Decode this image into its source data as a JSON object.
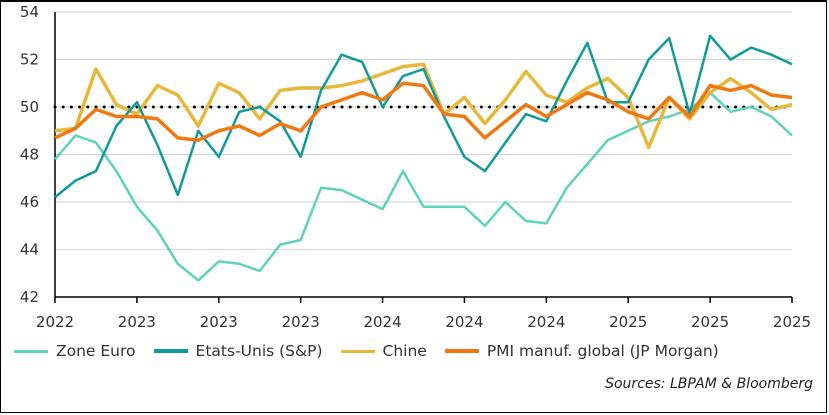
{
  "chart_data": {
    "type": "line",
    "x_tick_labels": [
      "2022",
      "2023",
      "2023",
      "2023",
      "2024",
      "2024",
      "2024",
      "2025",
      "2025",
      "2025"
    ],
    "x_tick_labels_full": [
      "2022",
      "2023",
      "2023",
      "2023",
      "2024",
      "2024",
      "2024",
      "2025",
      "2025",
      "2025"
    ],
    "y_ticks": [
      42,
      44,
      46,
      48,
      50,
      52,
      54
    ],
    "ylim": [
      42,
      54
    ],
    "grid": "horizontal",
    "reference_line": 50,
    "legend_position": "bottom",
    "series": [
      {
        "name": "Zone Euro",
        "color": "#5dd3b8",
        "values": [
          47.8,
          48.8,
          48.5,
          47.3,
          45.8,
          44.8,
          43.4,
          42.7,
          43.5,
          43.4,
          43.1,
          44.2,
          44.4,
          46.6,
          46.5,
          46.1,
          45.7,
          47.3,
          45.8,
          45.8,
          45.8,
          45.0,
          46.0,
          45.2,
          45.1,
          46.6,
          47.6,
          48.6,
          49.0,
          49.4,
          49.6,
          49.9,
          50.6,
          49.8,
          50.0,
          49.6,
          48.8
        ]
      },
      {
        "name": "Etats-Unis (S&P)",
        "color": "#109b9b",
        "values": [
          46.2,
          46.9,
          47.3,
          49.2,
          50.2,
          48.4,
          46.3,
          49.0,
          47.9,
          49.8,
          50.0,
          49.4,
          47.9,
          50.7,
          52.2,
          51.9,
          50.0,
          51.3,
          51.6,
          49.6,
          47.9,
          47.3,
          48.5,
          49.7,
          49.4,
          51.1,
          52.7,
          50.2,
          50.2,
          52.0,
          52.9,
          49.7,
          53.0,
          52.0,
          52.5,
          52.2,
          51.8
        ]
      },
      {
        "name": "Chine",
        "color": "#e6b83c",
        "values": [
          49.0,
          49.1,
          51.6,
          50.1,
          49.7,
          50.9,
          50.5,
          49.2,
          51.0,
          50.6,
          49.5,
          50.7,
          50.8,
          50.8,
          50.9,
          51.1,
          51.4,
          51.7,
          51.8,
          49.7,
          50.4,
          49.3,
          50.3,
          51.5,
          50.5,
          50.2,
          50.8,
          51.2,
          50.4,
          48.3,
          50.4,
          49.5,
          50.6,
          51.2,
          50.6,
          49.9,
          50.1
        ]
      },
      {
        "name": "PMI manuf. global (JP Morgan)",
        "color": "#f07810",
        "values": [
          48.7,
          49.1,
          49.9,
          49.6,
          49.6,
          49.5,
          48.7,
          48.6,
          49.0,
          49.2,
          48.8,
          49.3,
          49.0,
          50.0,
          50.3,
          50.6,
          50.3,
          51.0,
          50.9,
          49.7,
          49.6,
          48.7,
          49.4,
          50.1,
          49.6,
          50.1,
          50.6,
          50.3,
          49.8,
          49.5,
          50.4,
          49.6,
          50.9,
          50.7,
          50.9,
          50.5,
          50.4
        ]
      }
    ]
  },
  "x_labels": [
    "2022",
    "2023",
    "2023",
    "2023",
    "2024",
    "2024",
    "2024",
    "2025",
    "2025",
    "2025"
  ],
  "source": "Sources: LBPAM & Bloomberg"
}
